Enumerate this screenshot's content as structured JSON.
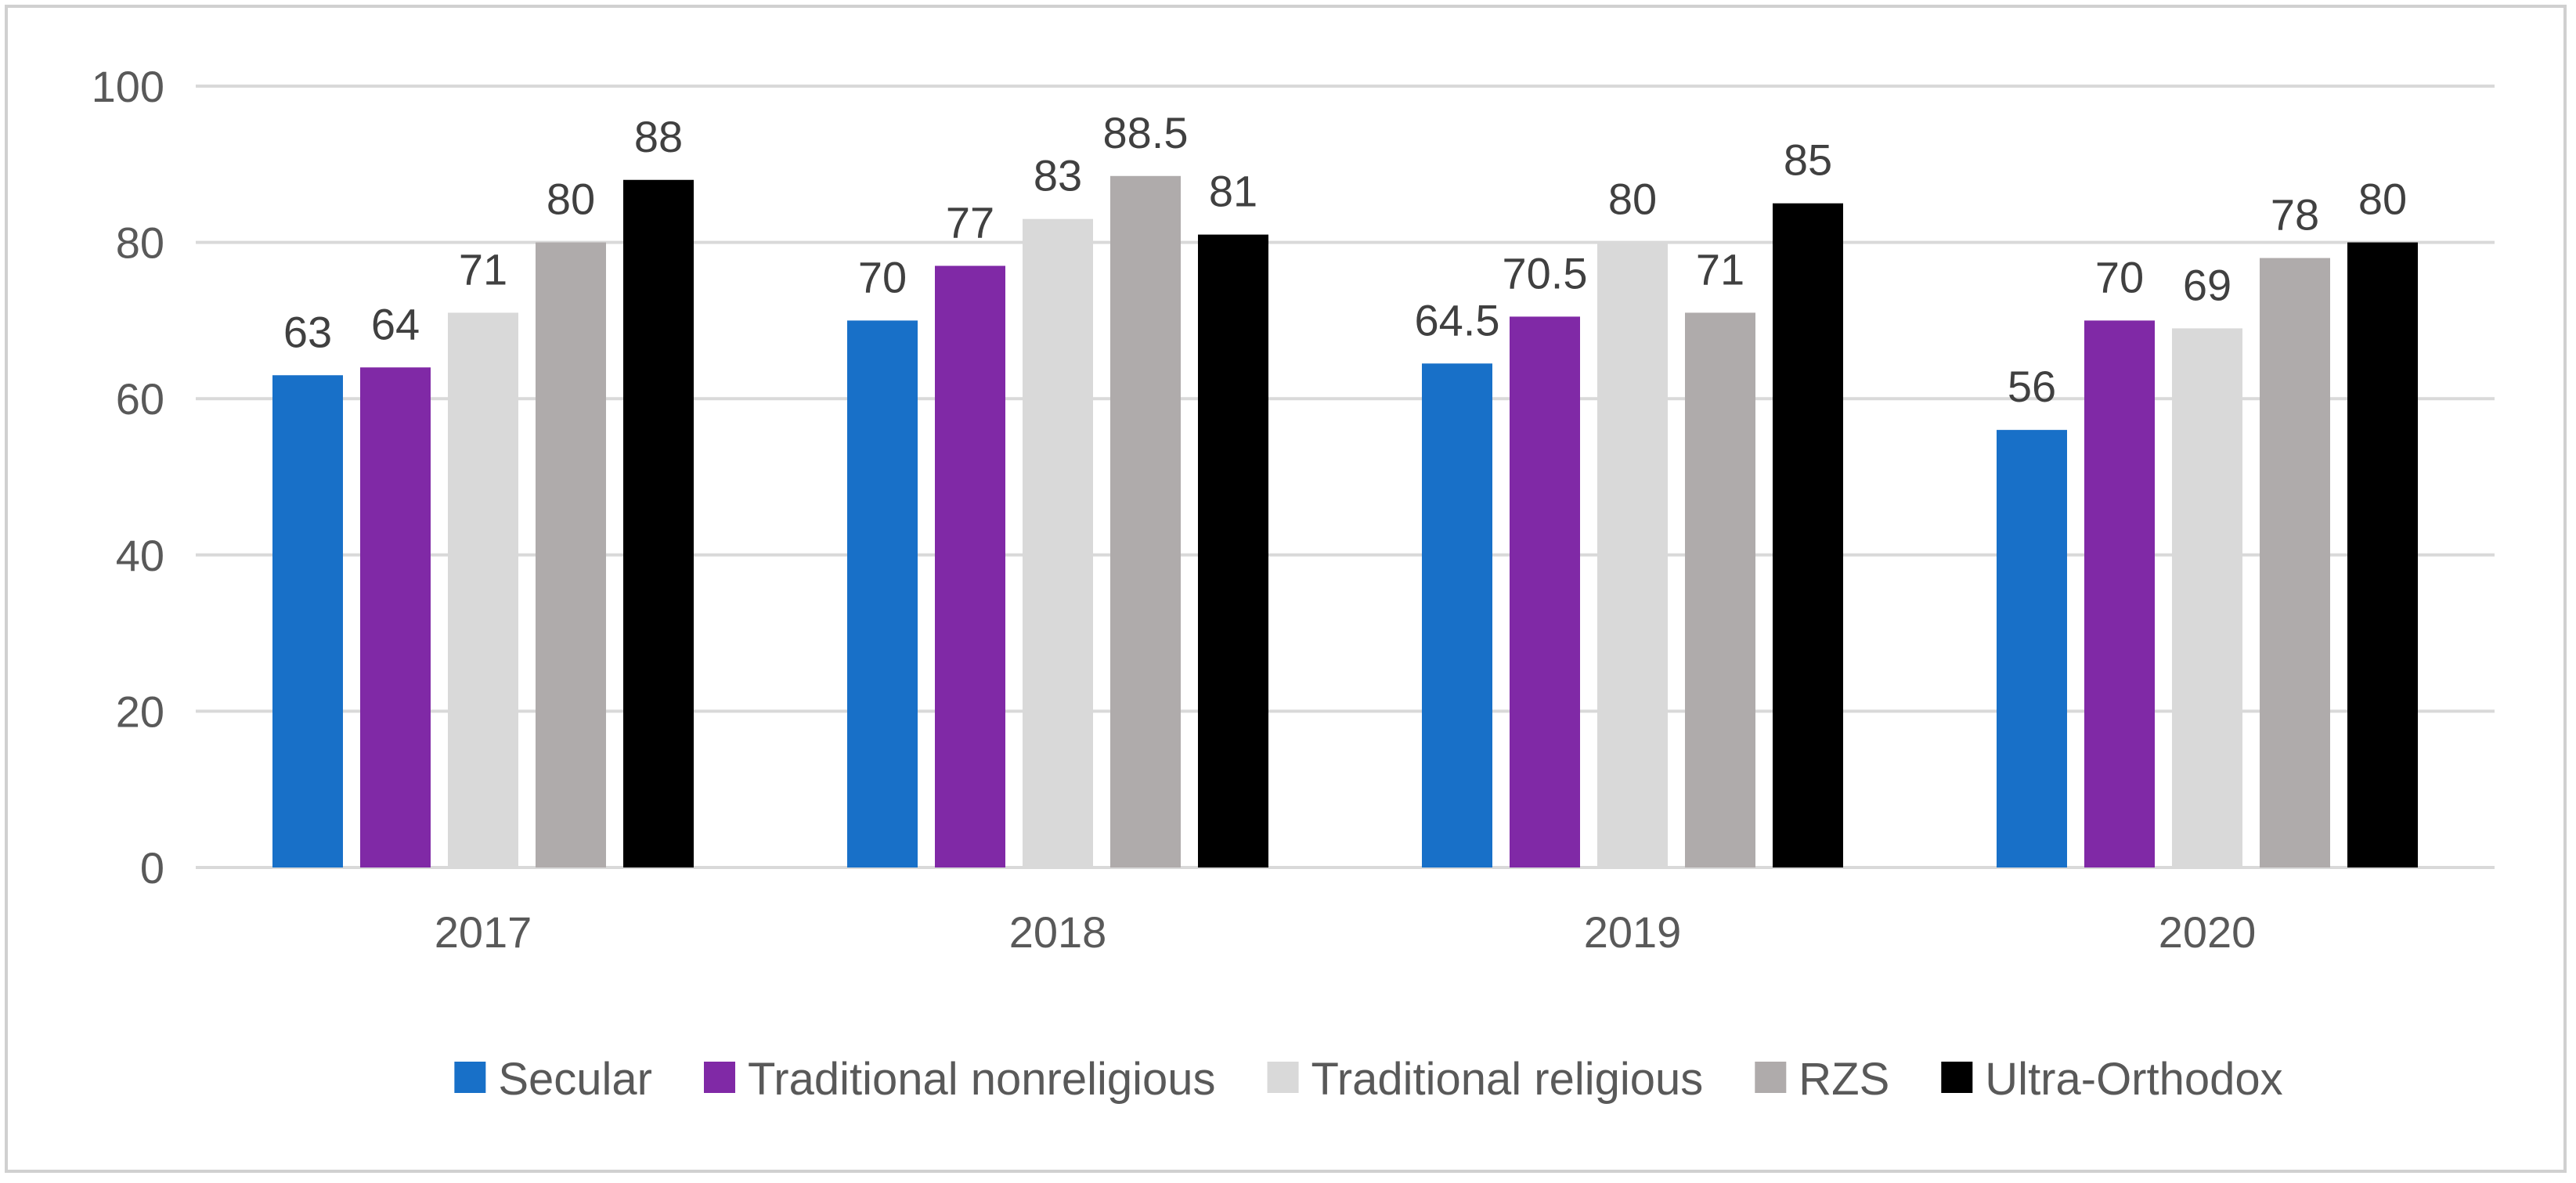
{
  "chart_data": {
    "type": "bar",
    "title": "",
    "xlabel": "",
    "ylabel": "",
    "ylim": [
      0,
      100
    ],
    "yticks": [
      0,
      20,
      40,
      60,
      80,
      100
    ],
    "grid": true,
    "legend_position": "bottom",
    "categories": [
      "2017",
      "2018",
      "2019",
      "2020"
    ],
    "series": [
      {
        "name": "Secular",
        "color": "#1870c8",
        "values": [
          63,
          70,
          64.5,
          56
        ],
        "labels": [
          "63",
          "70",
          "64.5",
          "56"
        ]
      },
      {
        "name": "Traditional nonreligious",
        "color": "#8029a6",
        "values": [
          64,
          77,
          70.5,
          70
        ],
        "labels": [
          "64",
          "77",
          "70.5",
          "70"
        ]
      },
      {
        "name": "Traditional religious",
        "color": "#d9d9d9",
        "values": [
          71,
          83,
          80,
          69
        ],
        "labels": [
          "71",
          "83",
          "80",
          "69"
        ]
      },
      {
        "name": "RZS",
        "color": "#afabab",
        "values": [
          80,
          88.5,
          71,
          78
        ],
        "labels": [
          "80",
          "88.5",
          "71",
          "78"
        ]
      },
      {
        "name": "Ultra-Orthodox",
        "color": "#000000",
        "values": [
          88,
          81,
          85,
          80
        ],
        "labels": [
          "88",
          "81",
          "85",
          "80"
        ]
      }
    ]
  }
}
